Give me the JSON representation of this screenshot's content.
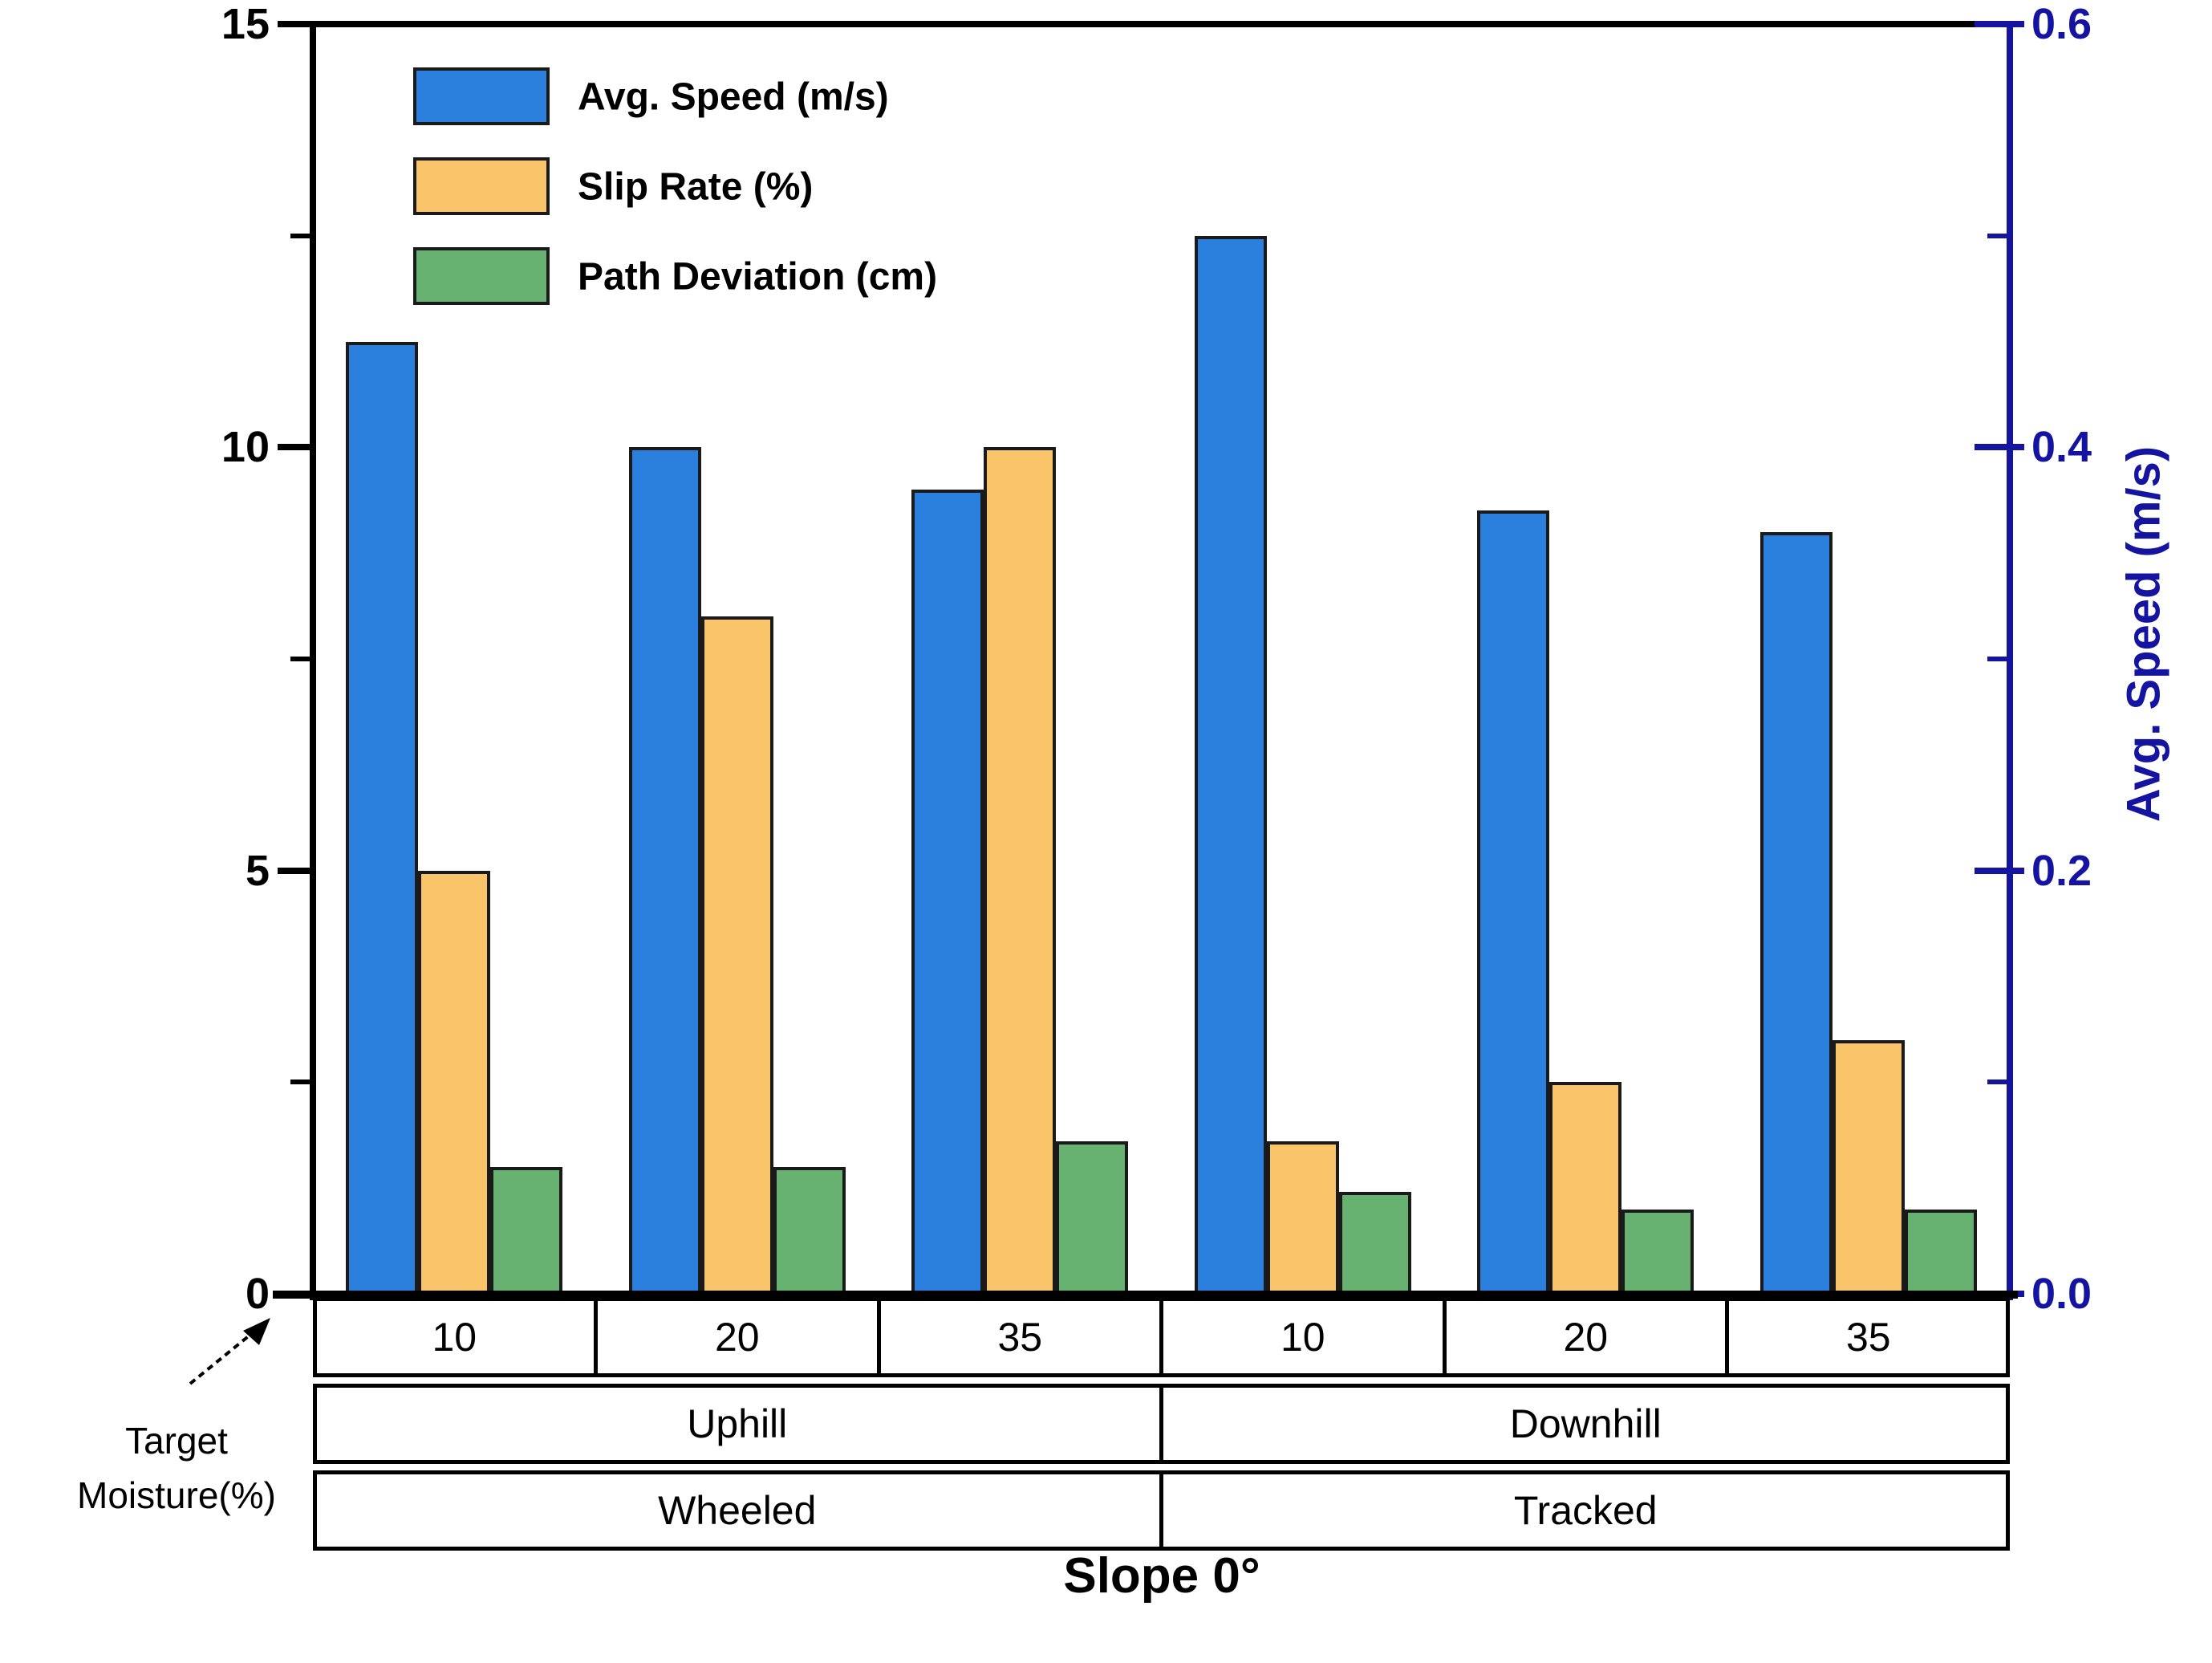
{
  "chart_data": {
    "type": "bar",
    "title": "Slope 0°",
    "categories": [
      "10",
      "20",
      "35",
      "10",
      "20",
      "35"
    ],
    "series": [
      {
        "name": "Avg. Speed (m/s)",
        "axis": "right",
        "color": "#2A80DC",
        "values": [
          0.45,
          0.4,
          0.38,
          0.5,
          0.37,
          0.36
        ]
      },
      {
        "name": "Slip Rate (%)",
        "axis": "left",
        "color": "#FAC46B",
        "values": [
          5.0,
          8.0,
          10.0,
          1.8,
          2.5,
          3.0
        ]
      },
      {
        "name": "Path Deviation (cm)",
        "axis": "left",
        "color": "#68B271",
        "values": [
          1.5,
          1.5,
          1.8,
          1.2,
          1.0,
          1.0
        ]
      }
    ],
    "left_axis": {
      "range": [
        0,
        15
      ],
      "major_ticks": [
        {
          "value": 15,
          "label": "15"
        },
        {
          "value": 10,
          "label": "10"
        },
        {
          "value": 5,
          "label": "5"
        },
        {
          "value": 0,
          "label": "0"
        }
      ],
      "minor_ticks": [
        12.5,
        7.5,
        2.5
      ],
      "color": "#000000"
    },
    "right_axis": {
      "label": "Avg. Speed (m/s)",
      "range": [
        0,
        0.6
      ],
      "major_ticks": [
        {
          "value": 0.6,
          "label": "0.6"
        },
        {
          "value": 0.4,
          "label": "0.4"
        },
        {
          "value": 0.2,
          "label": "0.2"
        },
        {
          "value": 0.0,
          "label": "0.0"
        }
      ],
      "minor_ticks": [
        0.5,
        0.3,
        0.1
      ],
      "color": "#1414A0"
    },
    "x_bands": {
      "terrain": [
        "Uphill",
        "Downhill"
      ],
      "vehicle": [
        "Wheeled",
        "Tracked"
      ]
    },
    "x_axis_annotation_lines": [
      "Target",
      "Moisture(%)"
    ],
    "legend_position": "top-left",
    "grid": false
  }
}
